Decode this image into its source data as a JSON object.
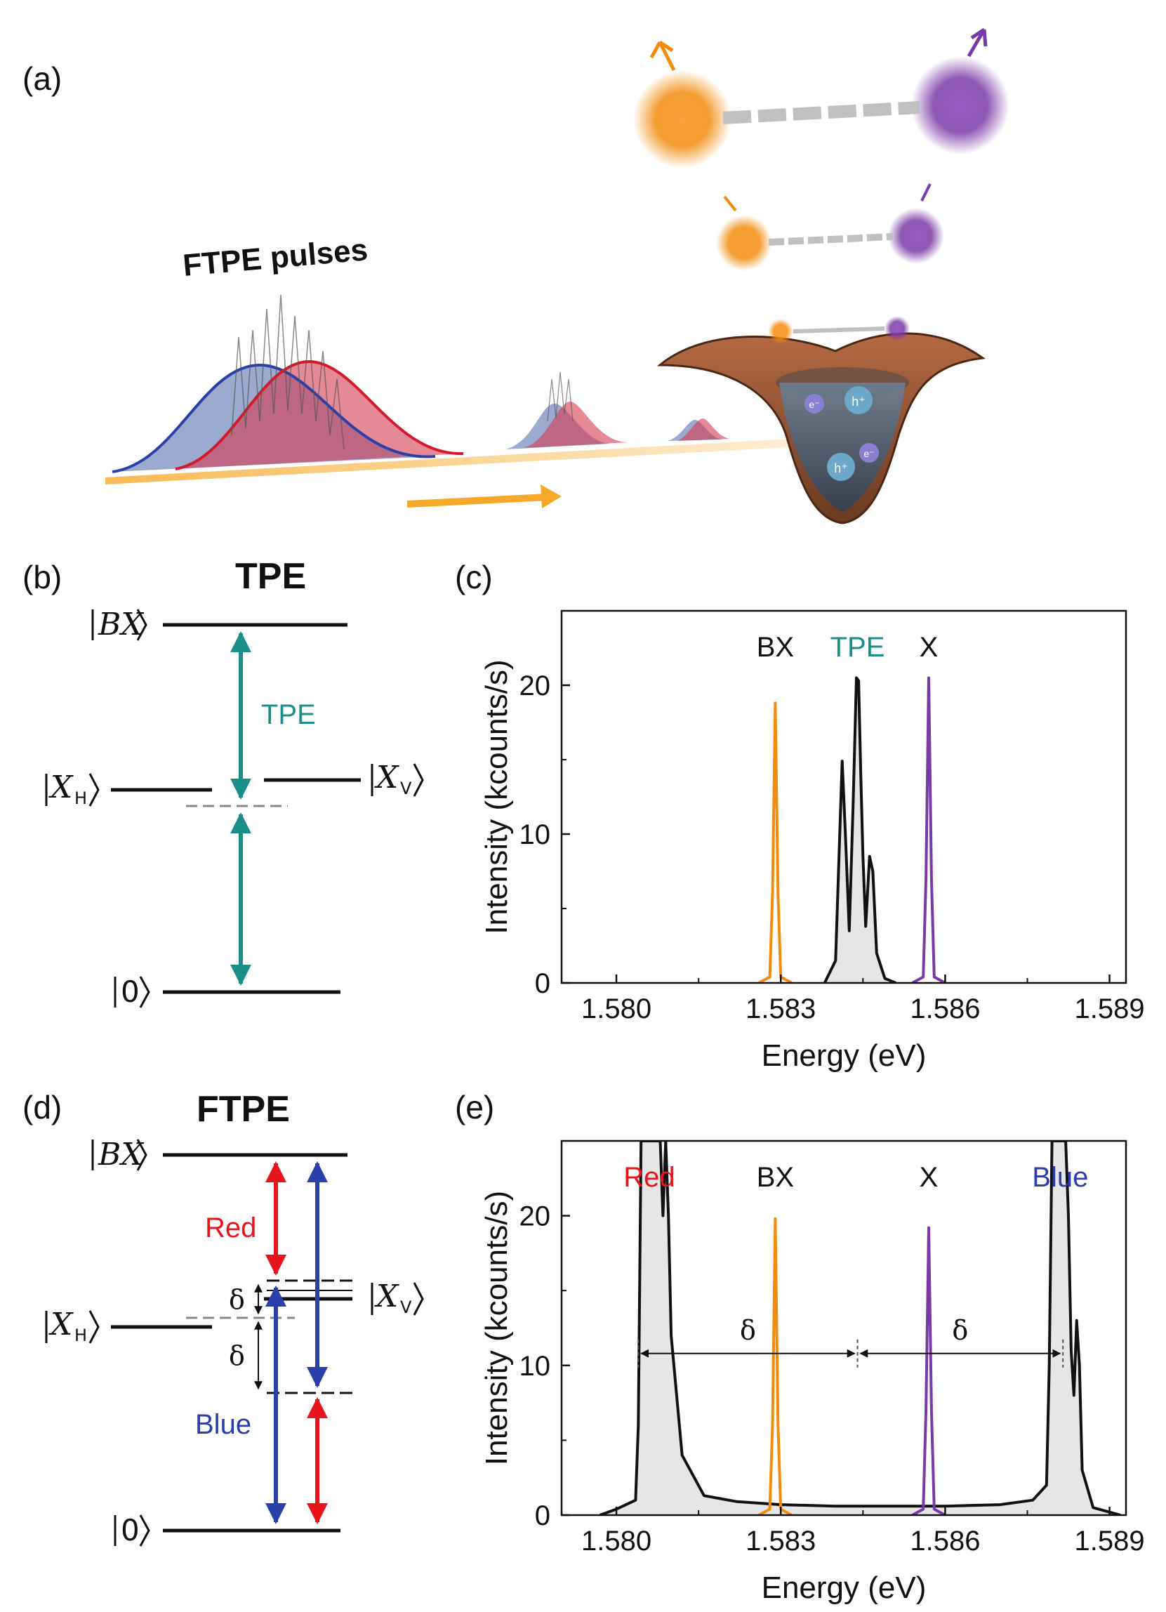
{
  "figure": {
    "panel_labels": {
      "a": "(a)",
      "b": "(b)",
      "c": "(c)",
      "d": "(d)",
      "e": "(e)"
    },
    "schematic": {
      "pulses_label": "FTPE pulses",
      "hole": "h⁺",
      "electron": "e⁻"
    },
    "tpe_diagram": {
      "title": "TPE",
      "ket_bx": "BX",
      "ket_xh": "X",
      "ket_xh_sub": "H",
      "ket_xv": "X",
      "ket_xv_sub": "V",
      "ket_0": "0",
      "arrow_label": "TPE",
      "teal": "#1a8f8a"
    },
    "ftpe_diagram": {
      "title": "FTPE",
      "ket_bx": "BX",
      "ket_xh": "X",
      "ket_xh_sub": "H",
      "ket_xv": "X",
      "ket_xv_sub": "V",
      "ket_0": "0",
      "red_label": "Red",
      "blue_label": "Blue",
      "delta": "δ",
      "red": "#e8141b",
      "blue": "#2a3fa8"
    },
    "colors": {
      "orange": "#f28c0f",
      "purple": "#7a3aa6",
      "teal": "#1a8f8a",
      "red": "#e8141b",
      "blue": "#2a3fa8"
    }
  },
  "chart_data": [
    {
      "type": "line",
      "xlabel": "Energy (eV)",
      "ylabel": "Intensity (kcounts/s)",
      "xlim": [
        1.579,
        1.5893
      ],
      "ylim": [
        0,
        25
      ],
      "xticks": [
        1.58,
        1.583,
        1.586,
        1.589
      ],
      "xtick_labels": [
        "1.580",
        "1.583",
        "1.586",
        "1.589"
      ],
      "yticks": [
        0,
        10,
        20
      ],
      "ytick_labels": [
        "0",
        "10",
        "20"
      ],
      "annotations": [
        {
          "text": "BX",
          "x": 1.5829,
          "color": "#111111"
        },
        {
          "text": "TPE",
          "x": 1.5844,
          "color": "#1a8f8a"
        },
        {
          "text": "X",
          "x": 1.5857,
          "color": "#111111"
        }
      ],
      "series": [
        {
          "color": "#f28c0f",
          "x": [
            1.5826,
            1.5828,
            1.58285,
            1.5829,
            1.58295,
            1.583,
            1.5832
          ],
          "y": [
            0,
            0.4,
            6,
            18.8,
            6,
            0.4,
            0
          ]
        },
        {
          "color": "#111111",
          "fill": "#e6e6e6",
          "x": [
            1.5838,
            1.584,
            1.58412,
            1.58418,
            1.58425,
            1.58432,
            1.58438,
            1.58442,
            1.58446,
            1.5845,
            1.58455,
            1.58462,
            1.58468,
            1.58475,
            1.5849,
            1.5851
          ],
          "y": [
            0,
            1.5,
            14.9,
            10,
            3.5,
            12,
            20.5,
            20.3,
            14,
            8.5,
            3.8,
            8.5,
            7.5,
            2,
            0.3,
            0
          ]
        },
        {
          "color": "#7a3aa6",
          "x": [
            1.5854,
            1.5856,
            1.58565,
            1.5857,
            1.58575,
            1.5858,
            1.586
          ],
          "y": [
            0,
            0.4,
            7,
            20.5,
            7,
            0.4,
            0
          ]
        }
      ]
    },
    {
      "type": "line",
      "xlabel": "Energy (eV)",
      "ylabel": "Intensity (kcounts/s)",
      "xlim": [
        1.579,
        1.5893
      ],
      "ylim": [
        0,
        25
      ],
      "xticks": [
        1.58,
        1.583,
        1.586,
        1.589
      ],
      "xtick_labels": [
        "1.580",
        "1.583",
        "1.586",
        "1.589"
      ],
      "yticks": [
        0,
        10,
        20
      ],
      "ytick_labels": [
        "0",
        "10",
        "20"
      ],
      "annotations": [
        {
          "text": "Red",
          "x": 1.5806,
          "color": "#e8141b"
        },
        {
          "text": "BX",
          "x": 1.5829,
          "color": "#111111"
        },
        {
          "text": "X",
          "x": 1.5857,
          "color": "#111111"
        },
        {
          "text": "Blue",
          "x": 1.5881,
          "color": "#2a3fa8"
        }
      ],
      "delta_marks": {
        "label": "δ",
        "y": 10.8,
        "left": 1.5804,
        "center": 1.5844,
        "right": 1.58815
      },
      "series": [
        {
          "color": "#111111",
          "fill": "#e6e6e6",
          "x": [
            1.5797,
            1.58,
            1.58035,
            1.5804,
            1.58045,
            1.5805,
            1.5806,
            1.5807,
            1.58075,
            1.5808,
            1.58085,
            1.5809,
            1.58095,
            1.581,
            1.5812,
            1.5816,
            1.5822,
            1.583,
            1.584,
            1.585,
            1.586,
            1.587,
            1.5876,
            1.58785,
            1.5879,
            1.58795,
            1.588,
            1.5881,
            1.58815,
            1.5882,
            1.58825,
            1.5883,
            1.58835,
            1.5884,
            1.58845,
            1.5885,
            1.5887,
            1.5892
          ],
          "y": [
            0,
            0.4,
            1.0,
            6,
            25,
            25,
            25,
            25,
            25,
            25,
            20,
            25,
            20,
            12,
            4,
            1.3,
            0.9,
            0.7,
            0.6,
            0.6,
            0.6,
            0.7,
            1.0,
            2.0,
            10,
            25,
            25,
            25,
            25,
            25,
            20,
            11,
            8,
            13,
            10,
            3,
            0.5,
            0
          ]
        },
        {
          "color": "#f28c0f",
          "x": [
            1.5826,
            1.5828,
            1.58285,
            1.5829,
            1.58295,
            1.583,
            1.5832
          ],
          "y": [
            0,
            0.4,
            6,
            19.8,
            6,
            0.4,
            0
          ]
        },
        {
          "color": "#7a3aa6",
          "x": [
            1.5854,
            1.5856,
            1.58565,
            1.5857,
            1.58575,
            1.5858,
            1.586
          ],
          "y": [
            0,
            0.4,
            7,
            19.2,
            7,
            0.4,
            0
          ]
        }
      ]
    }
  ]
}
